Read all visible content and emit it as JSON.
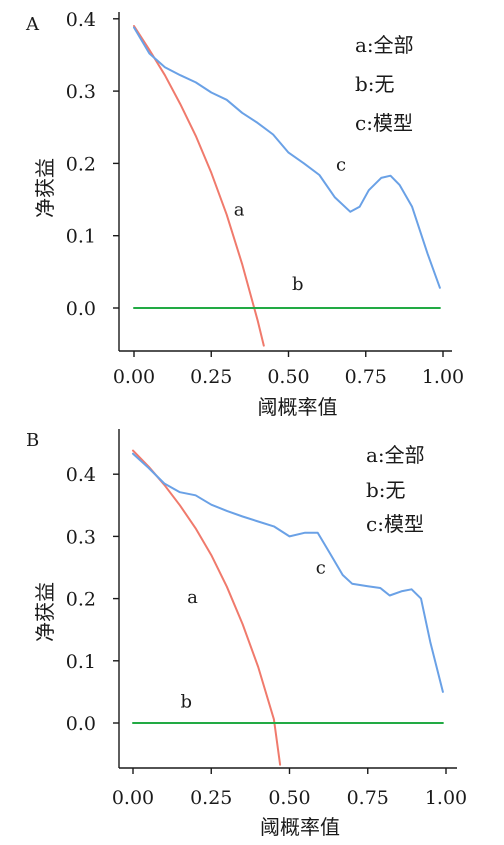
{
  "chart_data": [
    {
      "type": "line",
      "panel_label": "A",
      "xlabel": "阈概率值",
      "ylabel": "净获益",
      "xlim": [
        0,
        1
      ],
      "ylim": [
        -0.06,
        0.41
      ],
      "x_ticks": [
        "0.00",
        "0.25",
        "0.50",
        "0.75",
        "1.00"
      ],
      "y_ticks": [
        "0.0",
        "0.1",
        "0.2",
        "0.3",
        "0.4"
      ],
      "legend": [
        "a:全部",
        "b:无",
        "c:模型"
      ],
      "legend_position": "top-right",
      "grid": false,
      "series": [
        {
          "key": "a",
          "color": "#f07a6c",
          "x": [
            0.0,
            0.05,
            0.1,
            0.15,
            0.2,
            0.25,
            0.3,
            0.35,
            0.4,
            0.42
          ],
          "y": [
            0.39,
            0.357,
            0.322,
            0.282,
            0.238,
            0.187,
            0.129,
            0.061,
            -0.017,
            -0.052
          ]
        },
        {
          "key": "b",
          "color": "#22aa44",
          "x": [
            0.0,
            0.99
          ],
          "y": [
            0.0,
            0.0
          ]
        },
        {
          "key": "c",
          "color": "#6aa1e6",
          "x": [
            0.0,
            0.05,
            0.1,
            0.15,
            0.2,
            0.25,
            0.3,
            0.35,
            0.4,
            0.45,
            0.5,
            0.55,
            0.6,
            0.65,
            0.7,
            0.73,
            0.76,
            0.8,
            0.83,
            0.86,
            0.9,
            0.95,
            0.99
          ],
          "y": [
            0.388,
            0.352,
            0.333,
            0.322,
            0.312,
            0.298,
            0.288,
            0.27,
            0.256,
            0.24,
            0.215,
            0.2,
            0.184,
            0.153,
            0.133,
            0.14,
            0.163,
            0.18,
            0.183,
            0.17,
            0.14,
            0.075,
            0.028
          ]
        }
      ],
      "curve_labels": [
        {
          "text": "a",
          "x": 0.34,
          "y": 0.128
        },
        {
          "text": "b",
          "x": 0.53,
          "y": 0.025
        },
        {
          "text": "c",
          "x": 0.67,
          "y": 0.19
        }
      ]
    },
    {
      "type": "line",
      "panel_label": "B",
      "xlabel": "阈概率值",
      "ylabel": "净获益",
      "xlim": [
        0,
        1
      ],
      "ylim": [
        -0.07,
        0.47
      ],
      "x_ticks": [
        "0.00",
        "0.25",
        "0.50",
        "0.75",
        "1.00"
      ],
      "y_ticks": [
        "0.0",
        "0.1",
        "0.2",
        "0.3",
        "0.4"
      ],
      "legend": [
        "a:全部",
        "b:无",
        "c:模型"
      ],
      "legend_position": "top-right",
      "grid": false,
      "series": [
        {
          "key": "a",
          "color": "#f07a6c",
          "x": [
            0.0,
            0.05,
            0.1,
            0.15,
            0.2,
            0.25,
            0.3,
            0.35,
            0.4,
            0.45,
            0.47
          ],
          "y": [
            0.438,
            0.412,
            0.383,
            0.35,
            0.313,
            0.27,
            0.219,
            0.159,
            0.09,
            0.006,
            -0.067
          ]
        },
        {
          "key": "b",
          "color": "#22aa44",
          "x": [
            0.0,
            0.99
          ],
          "y": [
            0.0,
            0.0
          ]
        },
        {
          "key": "c",
          "color": "#6aa1e6",
          "x": [
            0.0,
            0.05,
            0.1,
            0.15,
            0.2,
            0.25,
            0.3,
            0.35,
            0.4,
            0.45,
            0.5,
            0.55,
            0.59,
            0.63,
            0.67,
            0.7,
            0.75,
            0.79,
            0.82,
            0.86,
            0.89,
            0.92,
            0.95,
            0.99
          ],
          "y": [
            0.433,
            0.41,
            0.385,
            0.371,
            0.366,
            0.351,
            0.341,
            0.332,
            0.324,
            0.316,
            0.3,
            0.306,
            0.306,
            0.272,
            0.238,
            0.224,
            0.22,
            0.217,
            0.205,
            0.212,
            0.215,
            0.2,
            0.13,
            0.05
          ]
        }
      ],
      "curve_labels": [
        {
          "text": "a",
          "x": 0.19,
          "y": 0.193
        },
        {
          "text": "b",
          "x": 0.17,
          "y": 0.025
        },
        {
          "text": "c",
          "x": 0.6,
          "y": 0.24
        }
      ]
    }
  ]
}
